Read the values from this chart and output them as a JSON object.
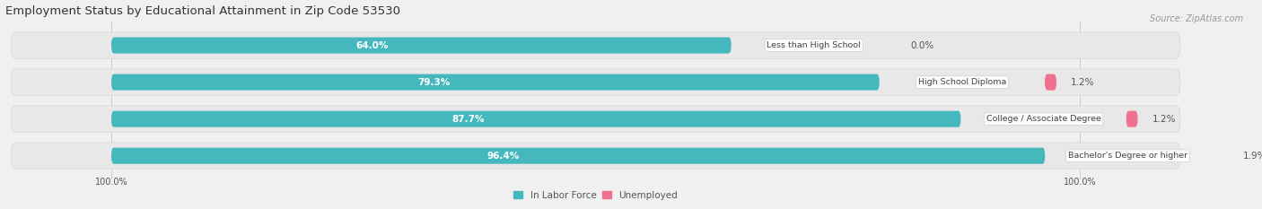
{
  "title": "Employment Status by Educational Attainment in Zip Code 53530",
  "source": "Source: ZipAtlas.com",
  "categories": [
    "Less than High School",
    "High School Diploma",
    "College / Associate Degree",
    "Bachelor's Degree or higher"
  ],
  "in_labor_force": [
    64.0,
    79.3,
    87.7,
    96.4
  ],
  "unemployed": [
    0.0,
    1.2,
    1.2,
    1.9
  ],
  "x_left_label": "100.0%",
  "x_right_label": "100.0%",
  "color_labor": "#45B8BE",
  "color_unemployed": "#F07090",
  "background_color": "#f0f0f0",
  "bar_bg_color": "#e8e8e8",
  "bar_bg_border": "#d8d8d8",
  "title_fontsize": 9.5,
  "label_fontsize": 7.5,
  "tick_fontsize": 7,
  "source_fontsize": 7
}
